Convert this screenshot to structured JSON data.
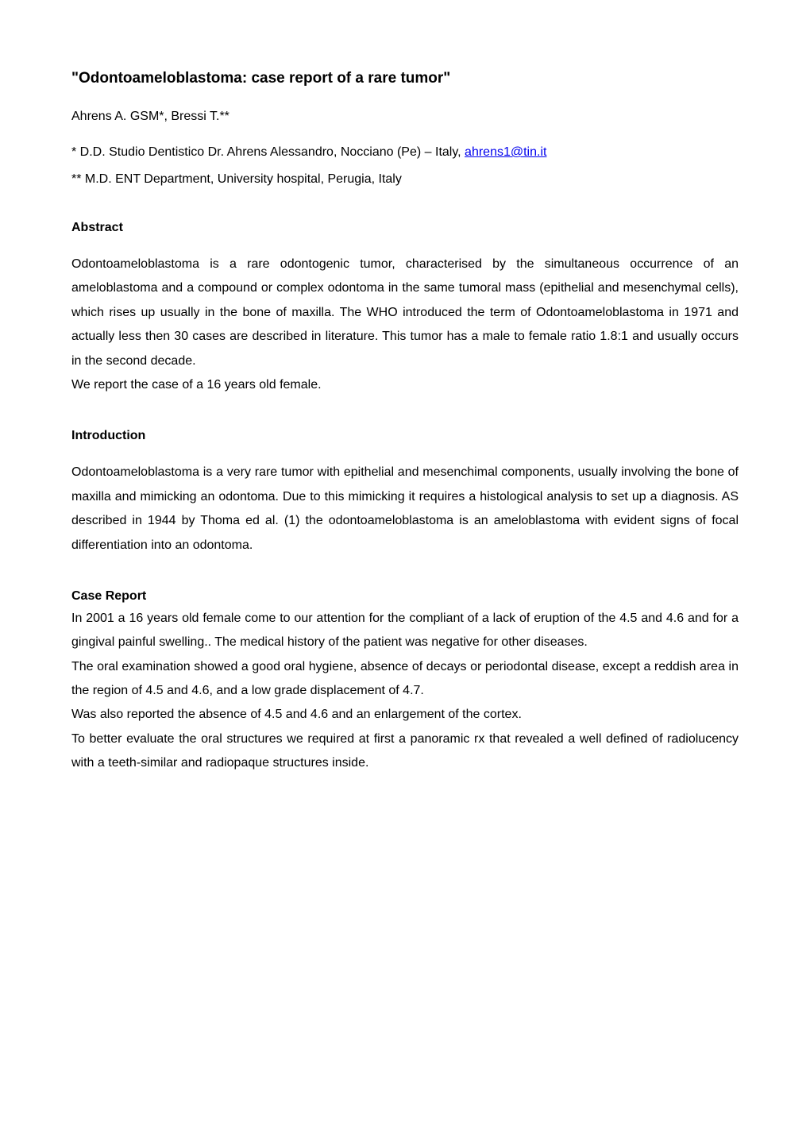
{
  "title": "\"Odontoameloblastoma: case report of a rare tumor\"",
  "authors": "Ahrens A. GSM*, Bressi T.**",
  "affiliations": {
    "first_prefix": "* D.D. Studio Dentistico Dr. Ahrens Alessandro, Nocciano (Pe) – Italy, ",
    "first_email": "ahrens1@tin.it",
    "second": "** M.D. ENT Department, University hospital, Perugia, Italy"
  },
  "abstract": {
    "heading": "Abstract",
    "para1": "Odontoameloblastoma is a rare odontogenic tumor, characterised by the simultaneous occurrence of an ameloblastoma and a compound or complex odontoma in the same tumoral mass (epithelial and mesenchymal cells), which rises up usually in the bone of maxilla. The WHO introduced the term of Odontoameloblastoma in 1971 and actually less then 30 cases are described in literature. This tumor has a male to female ratio 1.8:1 and usually occurs in the second decade.",
    "para2": "We report the case of a 16 years old female."
  },
  "introduction": {
    "heading": "Introduction",
    "para1": "Odontoameloblastoma is a very rare tumor with epithelial and mesenchimal components, usually involving the bone of maxilla and mimicking an odontoma. Due to this mimicking it requires a histological analysis to set up a diagnosis. AS described in 1944 by Thoma ed al. (1) the odontoameloblastoma is an ameloblastoma with evident signs of focal differentiation into an odontoma."
  },
  "case_report": {
    "heading": "Case Report",
    "para1": "In 2001 a 16 years old female come to our attention for the compliant of a lack of eruption of the 4.5 and 4.6 and for a gingival painful swelling.. The medical history of the patient was negative for other diseases.",
    "para2": "The oral examination showed a good oral hygiene, absence of decays or periodontal disease, except a reddish area in the region of 4.5 and 4.6, and a low grade displacement of 4.7.",
    "para3": "Was also reported the absence of 4.5 and 4.6 and an enlargement of the cortex.",
    "para4": "To better evaluate the oral structures we required at first a panoramic rx that revealed a well defined of radiolucency with a teeth-similar and radiopaque structures inside."
  },
  "colors": {
    "text": "#000000",
    "link": "#0000ee",
    "background": "#ffffff"
  }
}
